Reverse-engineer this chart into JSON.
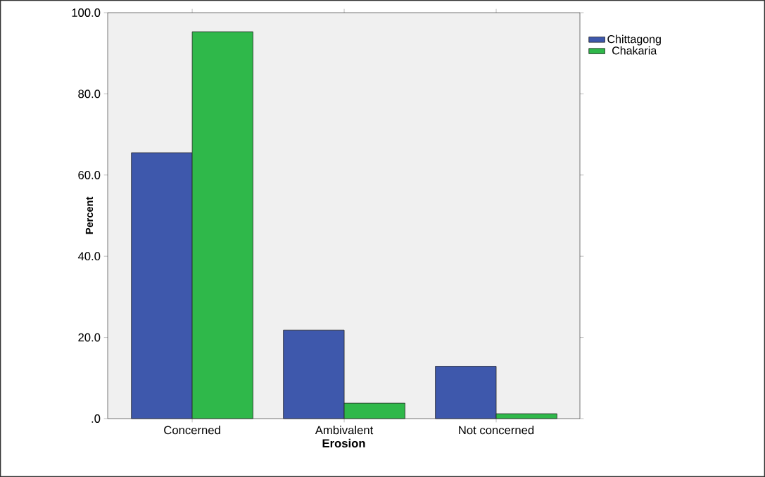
{
  "chart_data": {
    "type": "bar",
    "xlabel": "Erosion",
    "ylabel": "Percent",
    "categories": [
      "Concerned",
      "Ambivalent",
      "Not concerned"
    ],
    "series": [
      {
        "name": "Chittagong",
        "color": "#3e58ac",
        "values": [
          65.5,
          21.8,
          12.9
        ]
      },
      {
        "name": "Chakaria",
        "color": "#2fb84a",
        "values": [
          95.3,
          3.8,
          1.2
        ]
      }
    ],
    "ylim": [
      0,
      100
    ],
    "yticks": [
      {
        "value": 0,
        "label": ".0"
      },
      {
        "value": 20,
        "label": "20.0"
      },
      {
        "value": 40,
        "label": "40.0"
      },
      {
        "value": 60,
        "label": "60.0"
      },
      {
        "value": 80,
        "label": "80.0"
      },
      {
        "value": 100,
        "label": "100.0"
      }
    ],
    "legend": "top right"
  }
}
